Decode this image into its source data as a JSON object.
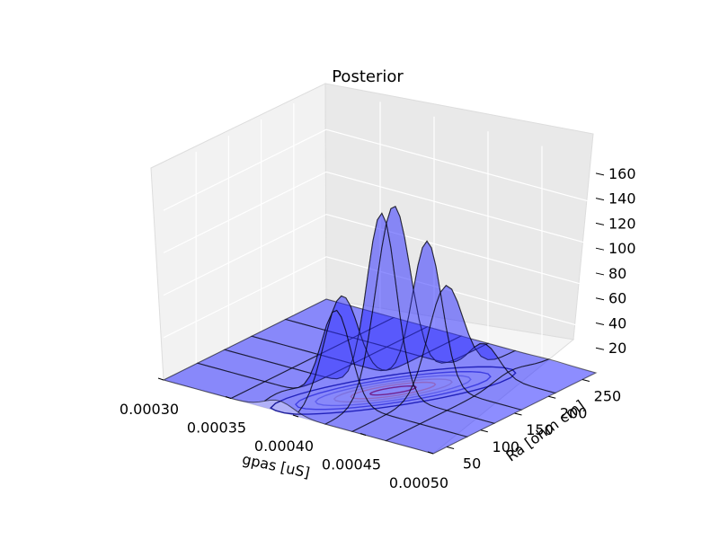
{
  "chart_data": {
    "type": "surface3d",
    "title": "Posterior",
    "xlabel": "gpas [uS]",
    "ylabel": "Ra [ohm cm]",
    "zlabel": "",
    "xlim": [
      0.0003,
      0.0005
    ],
    "ylim": [
      30,
      270
    ],
    "zlim": [
      0,
      170
    ],
    "x_ticks": [
      "0.00030",
      "0.00035",
      "0.00040",
      "0.00045",
      "0.00050"
    ],
    "y_ticks": [
      "50",
      "100",
      "150",
      "200",
      "250"
    ],
    "z_ticks": [
      "20",
      "40",
      "60",
      "80",
      "100",
      "120",
      "140",
      "160"
    ],
    "surface": {
      "shape": "gaussian",
      "peak_gpas": 0.00042,
      "peak_Ra": 130,
      "peak_value": 148,
      "sigma_gpas": 1.8e-05,
      "sigma_Ra": 42,
      "correlation": 0.8,
      "wireframe_gpas": [
        0.0003,
        0.00035,
        0.000375,
        0.0004,
        0.00042,
        0.00044,
        0.000465,
        0.0005
      ],
      "wireframe_Ra": [
        30,
        80,
        120,
        160,
        210,
        270
      ]
    },
    "contours": {
      "projection": "floor",
      "colors": [
        "#00008b",
        "#3333cc",
        "#6a6ae0",
        "#a08cc8",
        "#c07a9a",
        "#8b0040"
      ]
    },
    "colors": {
      "surface_fill": "#3333ff",
      "wire": "#000000",
      "floor": "#3333ff"
    }
  }
}
